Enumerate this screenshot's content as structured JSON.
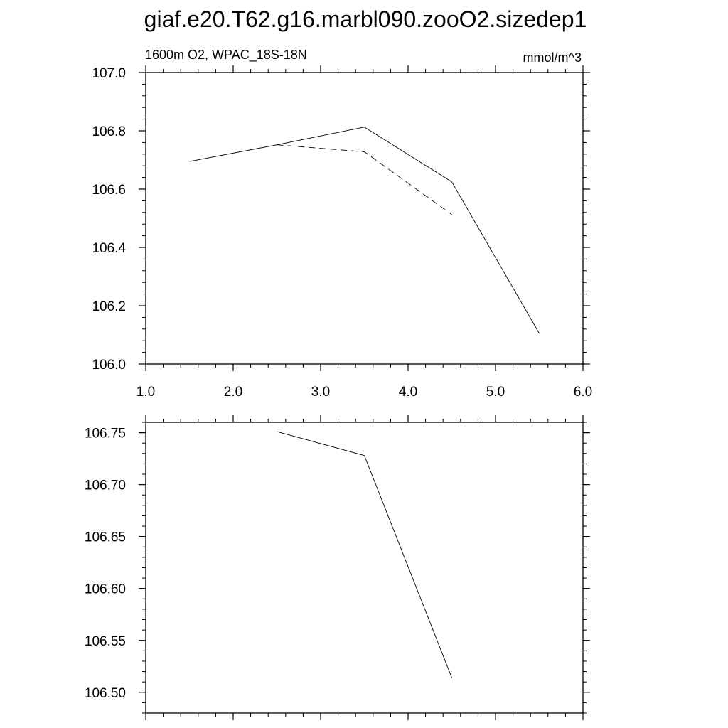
{
  "figure": {
    "title": "giaf.e20.T62.g16.marbl090.zooO2.sizedep1",
    "left_label": "1600m O2, WPAC_18S-18N",
    "right_label": "mmol/m^3",
    "line_color": "#000000",
    "background_color": "#ffffff"
  },
  "chart_data": [
    {
      "type": "line",
      "title": "",
      "left_string": "1600m O2, WPAC_18S-18N",
      "right_string": "mmol/m^3",
      "xlabel": "",
      "ylabel": "",
      "xlim": [
        1.0,
        6.0
      ],
      "ylim": [
        106.0,
        107.0
      ],
      "x_ticks": [
        "1.0",
        "2.0",
        "3.0",
        "4.0",
        "5.0",
        "6.0"
      ],
      "y_ticks": [
        "106.0",
        "106.2",
        "106.4",
        "106.6",
        "106.8",
        "107.0"
      ],
      "grid": false,
      "legend": "none",
      "series": [
        {
          "style": "solid",
          "x": [
            1.5,
            2.5,
            3.5,
            4.5,
            5.5
          ],
          "y": [
            106.695,
            106.752,
            106.813,
            106.625,
            106.105
          ]
        },
        {
          "style": "dashed",
          "x": [
            2.5,
            3.5,
            4.5
          ],
          "y": [
            106.752,
            106.728,
            106.513
          ]
        }
      ]
    },
    {
      "type": "line",
      "title": "",
      "xlabel": "",
      "ylabel": "",
      "xlim": [
        1.0,
        6.0
      ],
      "ylim": [
        106.48,
        106.76
      ],
      "x_ticks": [],
      "y_ticks": [
        "106.50",
        "106.55",
        "106.60",
        "106.65",
        "106.70",
        "106.75"
      ],
      "grid": false,
      "legend": "none",
      "series": [
        {
          "style": "solid",
          "x": [
            2.5,
            3.5,
            4.5
          ],
          "y": [
            106.751,
            106.728,
            106.514
          ]
        }
      ]
    }
  ]
}
